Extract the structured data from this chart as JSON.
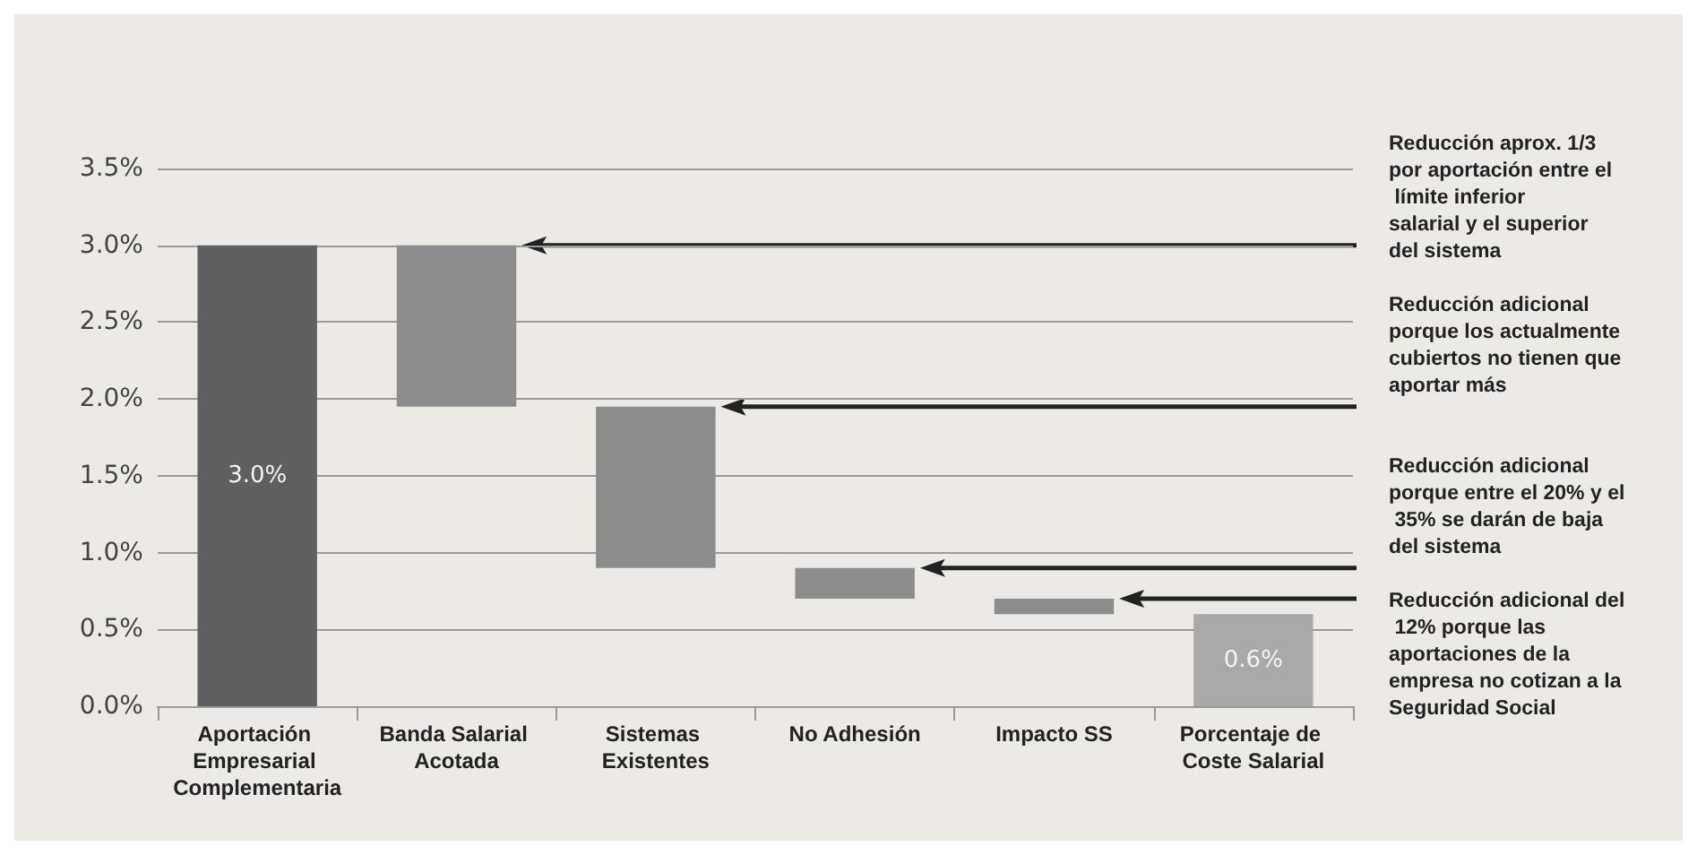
{
  "chart_data": {
    "type": "bar",
    "categories": [
      "Aportación Empresarial Complementaria",
      "Banda Salarial Acotada",
      "Sistemas Existentes",
      "No Adhesión",
      "Impacto SS",
      "Porcentaje de Coste Salarial"
    ],
    "base": [
      0,
      1.95,
      0.9,
      0.7,
      0.6,
      0
    ],
    "values": [
      3.0,
      1.05,
      1.05,
      0.2,
      0.1,
      0.6
    ],
    "colors": [
      "#5f5f61",
      "#8c8c8c",
      "#8c8c8c",
      "#8c8c8c",
      "#8c8c8c",
      "#a9a9a9"
    ],
    "value_labels": [
      "3.0%",
      null,
      null,
      null,
      null,
      "0.6%"
    ],
    "ylim": [
      0,
      3.5
    ],
    "yticks": [
      {
        "value": 0,
        "label": "0.0%"
      },
      {
        "value": 0.5,
        "label": "0.5%"
      },
      {
        "value": 1,
        "label": "1.0%"
      },
      {
        "value": 1.5,
        "label": "1.5%"
      },
      {
        "value": 2,
        "label": "2.0%"
      },
      {
        "value": 2.5,
        "label": "2.5%"
      },
      {
        "value": 3,
        "label": "3.0%"
      },
      {
        "value": 3.5,
        "label": "3.5%"
      }
    ],
    "grid": "y",
    "annotations": [
      "Reducción aprox. 1/3 por aportación entre el límite inferior salarial y el superior del sistema",
      "Reducción adicional porque los actualmente cubiertos no tienen que aportar más",
      "Reducción adicional porque entre el 20% y el 35% se darán de baja del sistema",
      "Reducción adicional del 12% porque las aportaciones de la empresa no cotizan a la Seguridad Social"
    ]
  }
}
